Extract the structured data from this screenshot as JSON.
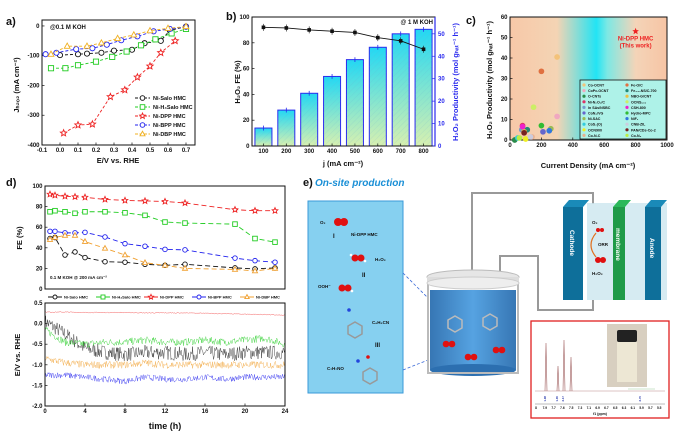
{
  "panel_labels": {
    "a": "a)",
    "b": "b)",
    "c": "c)",
    "d": "d)",
    "e": "e)"
  },
  "chart_data": [
    {
      "id": "a",
      "type": "line",
      "xlabel": "E/V vs. RHE",
      "ylabel": "Jₕ₂ₒ₂ (mA cm⁻²)",
      "annotation": "@0.1 M KOH",
      "xlim": [
        -0.1,
        0.75
      ],
      "ylim": [
        -400,
        20
      ],
      "xticks": [
        -0.1,
        0.0,
        0.1,
        0.2,
        0.3,
        0.4,
        0.5,
        0.6,
        0.7
      ],
      "yticks": [
        -400,
        -300,
        -200,
        -100,
        0
      ],
      "legend_position": "center-right",
      "series": [
        {
          "name": "Ni-Salo HMC",
          "color": "#111111",
          "marker": "circle",
          "x": [
            0.0,
            0.1,
            0.15,
            0.23,
            0.3,
            0.4,
            0.47,
            0.56,
            0.61,
            0.7
          ],
          "y": [
            -98,
            -95,
            -93,
            -90,
            -83,
            -80,
            -58,
            -50,
            -15,
            -2
          ]
        },
        {
          "name": "Ni-H₄Salo HMC",
          "color": "#22cc22",
          "marker": "square",
          "x": [
            -0.05,
            0.03,
            0.1,
            0.2,
            0.29,
            0.37,
            0.45,
            0.53,
            0.62,
            0.7
          ],
          "y": [
            -142,
            -142,
            -132,
            -120,
            -104,
            -86,
            -65,
            -45,
            -25,
            -10
          ]
        },
        {
          "name": "Ni-DPP HMC",
          "color": "#ee2222",
          "marker": "star",
          "x": [
            0.02,
            0.1,
            0.18,
            0.28,
            0.36,
            0.43,
            0.5,
            0.56,
            0.64
          ],
          "y": [
            -360,
            -333,
            -330,
            -238,
            -215,
            -172,
            -135,
            -90,
            -50
          ]
        },
        {
          "name": "Ni-BPP HMC",
          "color": "#2222ee",
          "marker": "circle",
          "x": [
            -0.08,
            -0.02,
            0.09,
            0.18,
            0.26,
            0.34,
            0.43,
            0.52,
            0.61,
            0.7
          ],
          "y": [
            -95,
            -90,
            -78,
            -75,
            -63,
            -48,
            -35,
            -18,
            -10,
            -3
          ]
        },
        {
          "name": "Ni-DBP HMC",
          "color": "#f0b020",
          "marker": "triangle",
          "x": [
            -0.05,
            0.04,
            0.15,
            0.23,
            0.32,
            0.41,
            0.5,
            0.6,
            0.7
          ],
          "y": [
            -95,
            -68,
            -68,
            -57,
            -42,
            -30,
            -16,
            -8,
            -2
          ]
        }
      ]
    },
    {
      "id": "b",
      "type": "bar+line",
      "xlabel": "j (mA cm⁻²)",
      "ylabel_left": "H₂O₂ FE (%)",
      "ylabel_right": "H₂O₂ Productivity (mol gₕₐₜ⁻¹ h⁻¹)",
      "annotation": "@ 1 M KOH",
      "categories": [
        100,
        200,
        300,
        400,
        500,
        600,
        700,
        800
      ],
      "ylim_left": [
        0,
        100
      ],
      "ylim_right": [
        0,
        57.5
      ],
      "yticks_left": [
        0,
        20,
        40,
        60,
        80,
        100
      ],
      "yticks_right": [
        0,
        10,
        20,
        30,
        40,
        50
      ],
      "bar_values_productivity": [
        8,
        16,
        23.5,
        31,
        38.5,
        44,
        50,
        52
      ],
      "line_values_fe": [
        92,
        91.5,
        90,
        89,
        88,
        84,
        81.5,
        75
      ],
      "bar_color": "#2a2aee",
      "line_color": "#111111"
    },
    {
      "id": "c",
      "type": "scatter",
      "xlabel": "Current Density (mA cm⁻²)",
      "ylabel": "H₂O₂ Productivity (mol gₕₐₜ⁻¹ h⁻¹)",
      "xlim": [
        0,
        1000
      ],
      "ylim": [
        0,
        60
      ],
      "xticks": [
        0,
        200,
        400,
        600,
        800,
        1000
      ],
      "yticks": [
        0,
        10,
        20,
        30,
        40,
        50,
        60
      ],
      "highlight": {
        "name": "Ni-DPP HMC",
        "note": "(This work)",
        "x": 800,
        "y": 53,
        "color": "#ee2222"
      },
      "legend_position": "bottom-right",
      "points": [
        {
          "name": "Co-OCNT",
          "x": 300,
          "y": 40.5,
          "color": "#f3c27a"
        },
        {
          "name": "CoPc-OCNT",
          "x": 300,
          "y": 11.5,
          "color": "#f0a8c0"
        },
        {
          "name": "O-CNTs",
          "x": 30,
          "y": 0,
          "color": "#2a8a4a"
        },
        {
          "name": "Ni-N₂O₂/C",
          "x": 80,
          "y": 7,
          "color": "#dd3366"
        },
        {
          "name": "In SAs/NSBC",
          "x": 75,
          "y": 5,
          "color": "#7799cc"
        },
        {
          "name": "CoN₄/VG",
          "x": 210,
          "y": 4,
          "color": "#6666cc"
        },
        {
          "name": "Ni-SAC",
          "x": 260,
          "y": 5.5,
          "color": "#99bb55"
        },
        {
          "name": "CoS₂(O)",
          "x": 50,
          "y": 1,
          "color": "#33ccdd"
        },
        {
          "name": "OCN900",
          "x": 100,
          "y": 0.5,
          "color": "#eeee22"
        },
        {
          "name": "Co-N-C",
          "x": 140,
          "y": 1.5,
          "color": "#e8b090"
        },
        {
          "name": "Fe-O/C",
          "x": 200,
          "y": 33.5,
          "color": "#e07040"
        },
        {
          "name": "Fe₃.₄-NS/C-700",
          "x": 110,
          "y": 5,
          "color": "#228877"
        },
        {
          "name": "NBO-G/CNT",
          "x": 90,
          "y": 4,
          "color": "#eec040"
        },
        {
          "name": "OCNS₉₀₀",
          "x": 150,
          "y": 16,
          "color": "#ccee66"
        },
        {
          "name": "CSH-800",
          "x": 80,
          "y": 6.5,
          "color": "#ee22cc"
        },
        {
          "name": "Hydro-MPC",
          "x": 200,
          "y": 7,
          "color": "#33bb33"
        },
        {
          "name": "NiF₂",
          "x": 250,
          "y": 4.5,
          "color": "#3377dd"
        },
        {
          "name": "CNB-ZIL",
          "x": 130,
          "y": 1.5,
          "color": "#ccccdd"
        },
        {
          "name": "PAN/CDs-Co-2",
          "x": 90,
          "y": 3.5,
          "color": "#772222"
        },
        {
          "name": "Co-N₄",
          "x": 60,
          "y": 1,
          "color": "#bbee44"
        }
      ]
    },
    {
      "id": "d-top",
      "type": "line",
      "ylabel": "FE (%)",
      "annotation": "0.1 M KOH @ 200 mA cm⁻²",
      "xlim": [
        0,
        24
      ],
      "ylim": [
        0,
        100
      ],
      "yticks": [
        0,
        20,
        40,
        60,
        80,
        100
      ],
      "x": [
        0.5,
        1,
        2,
        3,
        4,
        6,
        8,
        10,
        12,
        14,
        19,
        21,
        23
      ],
      "legend_position": "bottom",
      "series": [
        {
          "name": "Ni-Salo HMC",
          "color": "#111111",
          "marker": "circle",
          "values": [
            49,
            50,
            33,
            36,
            30.5,
            26.5,
            26,
            24,
            23,
            24,
            20.5,
            19.5,
            20.5
          ]
        },
        {
          "name": "Ni-H₄Salo HMC",
          "color": "#22cc22",
          "marker": "square",
          "values": [
            75,
            76,
            75,
            73.5,
            75,
            75,
            74,
            71.5,
            65,
            64,
            63,
            49,
            45.5
          ]
        },
        {
          "name": "Ni-DPP HMC",
          "color": "#ee2222",
          "marker": "star",
          "values": [
            92,
            91,
            90,
            89.5,
            89,
            87,
            86,
            85.5,
            85,
            83.5,
            77,
            76,
            76
          ]
        },
        {
          "name": "Ni-BPP HMC",
          "color": "#2222ee",
          "marker": "circle",
          "values": [
            56,
            56,
            54.5,
            54.5,
            55,
            50.5,
            44,
            41.5,
            38.5,
            38,
            30,
            27.5,
            26
          ]
        },
        {
          "name": "Ni-DBP HMC",
          "color": "#f0a030",
          "marker": "triangle",
          "values": [
            48,
            50,
            52,
            52,
            46,
            39.5,
            33,
            25.5,
            23,
            20,
            19,
            17.5,
            20
          ]
        }
      ]
    },
    {
      "id": "d-bottom",
      "type": "line",
      "xlabel": "time (h)",
      "ylabel": "E/V vs. RHE",
      "xlim": [
        0,
        24
      ],
      "ylim": [
        -2.0,
        0.5
      ],
      "xticks": [
        0,
        4,
        8,
        12,
        16,
        20,
        24
      ],
      "yticks": [
        -2.0,
        -1.5,
        -1.0,
        -0.5,
        0.0,
        0.5
      ],
      "x": [
        0,
        2,
        4,
        6,
        8,
        10,
        12,
        14,
        16,
        18,
        20,
        22,
        24
      ],
      "series": [
        {
          "name": "Ni-Salo HMC",
          "color": "#111111",
          "values": [
            0.05,
            -0.25,
            -0.6,
            -0.7,
            -0.75,
            -0.7,
            -0.7,
            -0.75,
            -0.7,
            -0.75,
            -0.7,
            -0.7,
            -0.7
          ]
        },
        {
          "name": "Ni-H₄Salo HMC",
          "color": "#22cc22",
          "values": [
            -0.15,
            -0.45,
            -0.5,
            -0.45,
            -0.45,
            -0.4,
            -0.45,
            -0.45,
            -0.4,
            -0.45,
            -0.4,
            -0.35,
            -0.5
          ]
        },
        {
          "name": "Ni-DPP HMC",
          "color": "#ee2222",
          "values": [
            0.28,
            0.28,
            0.27,
            0.27,
            0.27,
            0.26,
            0.26,
            0.26,
            0.25,
            0.24,
            0.23,
            0.22,
            0.2
          ]
        },
        {
          "name": "Ni-BPP HMC",
          "color": "#2222ee",
          "values": [
            -1.25,
            -1.25,
            -1.3,
            -1.35,
            -1.4,
            -1.3,
            -1.35,
            -1.35,
            -1.3,
            -1.35,
            -1.3,
            -1.3,
            -1.3
          ]
        },
        {
          "name": "Ni-DBP HMC",
          "color": "#f0a030",
          "values": [
            -0.85,
            -0.95,
            -1.0,
            -1.0,
            -1.0,
            -0.95,
            -1.0,
            -1.0,
            -1.0,
            -1.0,
            -1.0,
            -1.0,
            -1.0
          ]
        }
      ]
    }
  ],
  "diagram": {
    "title": "On-site production",
    "title_color": "#1a8fd6",
    "mechanism": {
      "o2": "O₂",
      "step1": "I",
      "catalyst": "Ni-DPP HMC",
      "h2o2": "H₂O₂",
      "step2": "II",
      "ooh": "OOH⁻",
      "benzonitrile": "C₆H₅CN",
      "step3": "III",
      "benzamide": "C₇H₇NO"
    },
    "cell": {
      "cathode": "Cathode",
      "membrane": "membrane",
      "anode": "Anode",
      "o2": "O₂",
      "orr": "ORR",
      "h2o2": "H₂O₂"
    },
    "nmr": {
      "xaxis_label": "f1 (ppm)",
      "xticks": [
        "8",
        "7.9",
        "7.7",
        "7.6",
        "7.5",
        "7.3",
        "7.1",
        "6.9",
        "6.7",
        "6.5",
        "6.3",
        "6.1",
        "5.9",
        "5.7",
        "5.5"
      ],
      "integrals": [
        "1.98",
        "1.00",
        "2.17",
        "2.70"
      ],
      "frame_color": "#e02020"
    }
  }
}
